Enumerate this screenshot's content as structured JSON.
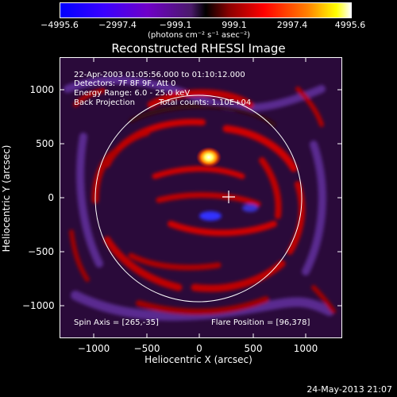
{
  "colorbar": {
    "ticks": [
      "−4995.6",
      "−2997.4",
      "−999.1",
      "999.1",
      "2997.4",
      "4995.6"
    ],
    "units": "(photons cm⁻² s⁻¹ asec⁻²)",
    "colors": [
      "#0000ff",
      "#3a00ff",
      "#6f00c8",
      "#5a2080",
      "#000000",
      "#8a0000",
      "#ff0000",
      "#ff8000",
      "#ffff00",
      "#ffffff"
    ]
  },
  "title": "Reconstructed RHESSI Image",
  "info": {
    "time_range": "22-Apr-2003 01:05:56.000 to 01:10:12.000",
    "detectors": "Detectors: 7F 8F 9F, Att 0",
    "energy": "Energy Range: 6.0 - 25.0 keV",
    "method": "Back Projection",
    "counts": "Total counts: 1.10E+04",
    "spin_axis": "Spin Axis = [265,-35]",
    "flare_position": "Flare Position = [96,378]"
  },
  "axes": {
    "xlabel": "Heliocentric X (arcsec)",
    "ylabel": "Heliocentric Y (arcsec)",
    "x_ticks": [
      "−1000",
      "−500",
      "0",
      "500",
      "1000"
    ],
    "y_ticks": [
      "1000",
      "500",
      "0",
      "−500",
      "−1000"
    ]
  },
  "footer": "24-May-2013 21:07"
}
